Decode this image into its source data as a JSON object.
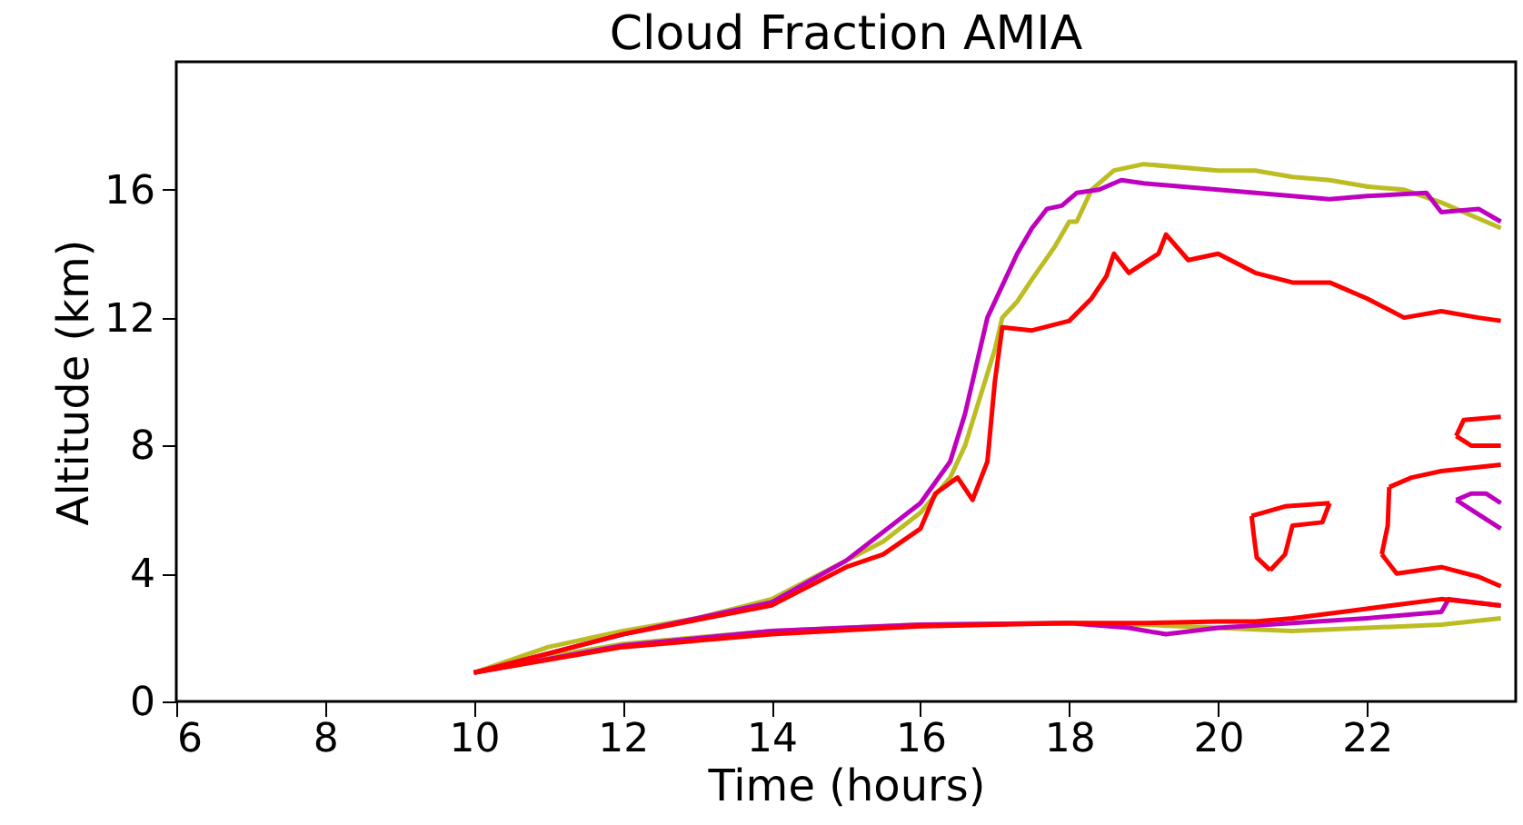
{
  "chart_data": {
    "type": "line",
    "title": "Cloud Fraction AMIA",
    "xlabel": "Time (hours)",
    "ylabel": "Altitude (km)",
    "xlim": [
      6,
      24
    ],
    "ylim": [
      0,
      20
    ],
    "xticks": [
      6,
      8,
      10,
      12,
      14,
      16,
      18,
      20,
      22
    ],
    "yticks": [
      0,
      4,
      8,
      12,
      16
    ],
    "series": [
      {
        "color": "#bcbd22",
        "x": [
          10,
          11,
          12,
          13,
          14,
          14.5,
          15,
          15.5,
          16,
          16.4,
          16.6,
          16.8,
          17,
          17.1,
          17.3,
          17.5,
          17.8,
          18,
          18.1,
          18.3,
          18.6,
          19,
          20,
          20.5,
          21,
          21.5,
          22,
          22.5,
          23,
          23.5,
          23.8
        ],
        "values": [
          0.9,
          1.7,
          2.2,
          2.6,
          3.2,
          3.8,
          4.4,
          5,
          5.9,
          7,
          8,
          9.5,
          11,
          12,
          12.5,
          13.2,
          14.2,
          15,
          15,
          16,
          16.6,
          16.8,
          16.6,
          16.6,
          16.4,
          16.3,
          16.1,
          16,
          15.6,
          15.1,
          14.8
        ]
      },
      {
        "color": "#bcbd22",
        "x": [
          10,
          11,
          12,
          14,
          16,
          18,
          19,
          20,
          21,
          22,
          23,
          23.8
        ],
        "values": [
          0.9,
          1.4,
          1.8,
          2.2,
          2.4,
          2.45,
          2.4,
          2.3,
          2.2,
          2.3,
          2.4,
          2.6
        ]
      },
      {
        "color": "#bf00bf",
        "x": [
          10,
          12,
          14,
          15,
          16,
          16.4,
          16.6,
          16.7,
          16.9,
          17.1,
          17.3,
          17.5,
          17.7,
          17.9,
          18.1,
          18.4,
          18.7,
          19,
          20,
          21,
          21.5,
          22,
          22.8,
          23,
          23.5,
          23.8
        ],
        "values": [
          0.9,
          2.1,
          3.1,
          4.4,
          6.2,
          7.5,
          9,
          10,
          12,
          13,
          14,
          14.8,
          15.4,
          15.5,
          15.9,
          16,
          16.3,
          16.2,
          16,
          15.8,
          15.7,
          15.8,
          15.9,
          15.3,
          15.4,
          15
        ]
      },
      {
        "color": "#bf00bf",
        "x": [
          10,
          12,
          14,
          16,
          18,
          18.8,
          19.3,
          20,
          21,
          22,
          23,
          23.1,
          23.8
        ],
        "values": [
          0.9,
          1.75,
          2.2,
          2.4,
          2.45,
          2.3,
          2.1,
          2.3,
          2.45,
          2.6,
          2.8,
          3.2,
          3
        ]
      },
      {
        "color": "#bf00bf",
        "x": [
          23.2,
          23.4,
          23.6,
          23.8
        ],
        "values": [
          6.3,
          6.5,
          6.5,
          6.2
        ]
      },
      {
        "color": "#bf00bf",
        "x": [
          23.2,
          23.4,
          23.6,
          23.8
        ],
        "values": [
          6.3,
          6,
          5.7,
          5.4
        ]
      },
      {
        "color": "#ff0000",
        "x": [
          10,
          12,
          14,
          15,
          15.5,
          16,
          16.2,
          16.5,
          16.7,
          16.9,
          17,
          17.1,
          17.5,
          18,
          18.3,
          18.5,
          18.6,
          18.8,
          19.2,
          19.3,
          19.6,
          20,
          20.5,
          21,
          21.5,
          22,
          22.5,
          23,
          23.5,
          23.8
        ],
        "values": [
          0.9,
          2.1,
          3,
          4.2,
          4.6,
          5.4,
          6.5,
          7,
          6.3,
          7.5,
          10,
          11.7,
          11.6,
          11.9,
          12.6,
          13.3,
          14,
          13.4,
          14,
          14.6,
          13.8,
          14,
          13.4,
          13.1,
          13.1,
          12.6,
          12,
          12.2,
          12,
          11.9
        ]
      },
      {
        "color": "#ff0000",
        "x": [
          10,
          12,
          14,
          16,
          18,
          19,
          20,
          20.5,
          21,
          22,
          23,
          23.8
        ],
        "values": [
          0.9,
          1.7,
          2.1,
          2.35,
          2.45,
          2.45,
          2.5,
          2.5,
          2.6,
          2.9,
          3.2,
          3
        ]
      },
      {
        "color": "#ff0000",
        "x": [
          20.45,
          20.9,
          21.5
        ],
        "values": [
          5.8,
          6.1,
          6.2
        ]
      },
      {
        "color": "#ff0000",
        "x": [
          20.7,
          20.9,
          21,
          21.4,
          21.5
        ],
        "values": [
          4.1,
          4.6,
          5.5,
          5.6,
          6.2
        ]
      },
      {
        "color": "#ff0000",
        "x": [
          20.45,
          20.48,
          20.52,
          20.7
        ],
        "values": [
          5.8,
          5.2,
          4.5,
          4.1
        ]
      },
      {
        "color": "#ff0000",
        "x": [
          22.3,
          22.6,
          23,
          23.8
        ],
        "values": [
          6.7,
          7,
          7.2,
          7.4
        ]
      },
      {
        "color": "#ff0000",
        "x": [
          22.2,
          22.28,
          22.3
        ],
        "values": [
          4.6,
          5.5,
          6.7
        ]
      },
      {
        "color": "#ff0000",
        "x": [
          22.2,
          22.4,
          23,
          23.5,
          23.8
        ],
        "values": [
          4.6,
          4,
          4.2,
          3.9,
          3.6
        ]
      },
      {
        "color": "#ff0000",
        "x": [
          23.2,
          23.3,
          23.8
        ],
        "values": [
          8.3,
          8.8,
          8.9
        ]
      },
      {
        "color": "#ff0000",
        "x": [
          23.2,
          23.4,
          23.8
        ],
        "values": [
          8.3,
          8,
          8
        ]
      }
    ]
  }
}
